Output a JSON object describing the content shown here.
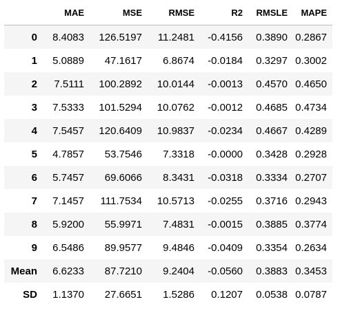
{
  "table": {
    "index_header": "",
    "columns": [
      "MAE",
      "MSE",
      "RMSE",
      "R2",
      "RMSLE",
      "MAPE"
    ],
    "rows": [
      {
        "index": "0",
        "values": [
          "8.4083",
          "126.5197",
          "11.2481",
          "-0.4156",
          "0.3890",
          "0.2867"
        ]
      },
      {
        "index": "1",
        "values": [
          "5.0889",
          "47.1617",
          "6.8674",
          "-0.0184",
          "0.3297",
          "0.3002"
        ]
      },
      {
        "index": "2",
        "values": [
          "7.5111",
          "100.2892",
          "10.0144",
          "-0.0013",
          "0.4570",
          "0.4650"
        ]
      },
      {
        "index": "3",
        "values": [
          "7.5333",
          "101.5294",
          "10.0762",
          "-0.0012",
          "0.4685",
          "0.4734"
        ]
      },
      {
        "index": "4",
        "values": [
          "7.5457",
          "120.6409",
          "10.9837",
          "-0.0234",
          "0.4667",
          "0.4289"
        ]
      },
      {
        "index": "5",
        "values": [
          "4.7857",
          "53.7546",
          "7.3318",
          "-0.0000",
          "0.3428",
          "0.2928"
        ]
      },
      {
        "index": "6",
        "values": [
          "5.7457",
          "69.6066",
          "8.3431",
          "-0.0318",
          "0.3334",
          "0.2707"
        ]
      },
      {
        "index": "7",
        "values": [
          "7.1457",
          "111.7534",
          "10.5713",
          "-0.0255",
          "0.3716",
          "0.2943"
        ]
      },
      {
        "index": "8",
        "values": [
          "5.9200",
          "55.9971",
          "7.4831",
          "-0.0015",
          "0.3885",
          "0.3774"
        ]
      },
      {
        "index": "9",
        "values": [
          "6.5486",
          "89.9577",
          "9.4846",
          "-0.0409",
          "0.3354",
          "0.2634"
        ]
      },
      {
        "index": "Mean",
        "values": [
          "6.6233",
          "87.7210",
          "9.2404",
          "-0.0560",
          "0.3883",
          "0.3453"
        ]
      },
      {
        "index": "SD",
        "values": [
          "1.1370",
          "27.6651",
          "1.5286",
          "0.1207",
          "0.0538",
          "0.0787"
        ]
      }
    ]
  }
}
